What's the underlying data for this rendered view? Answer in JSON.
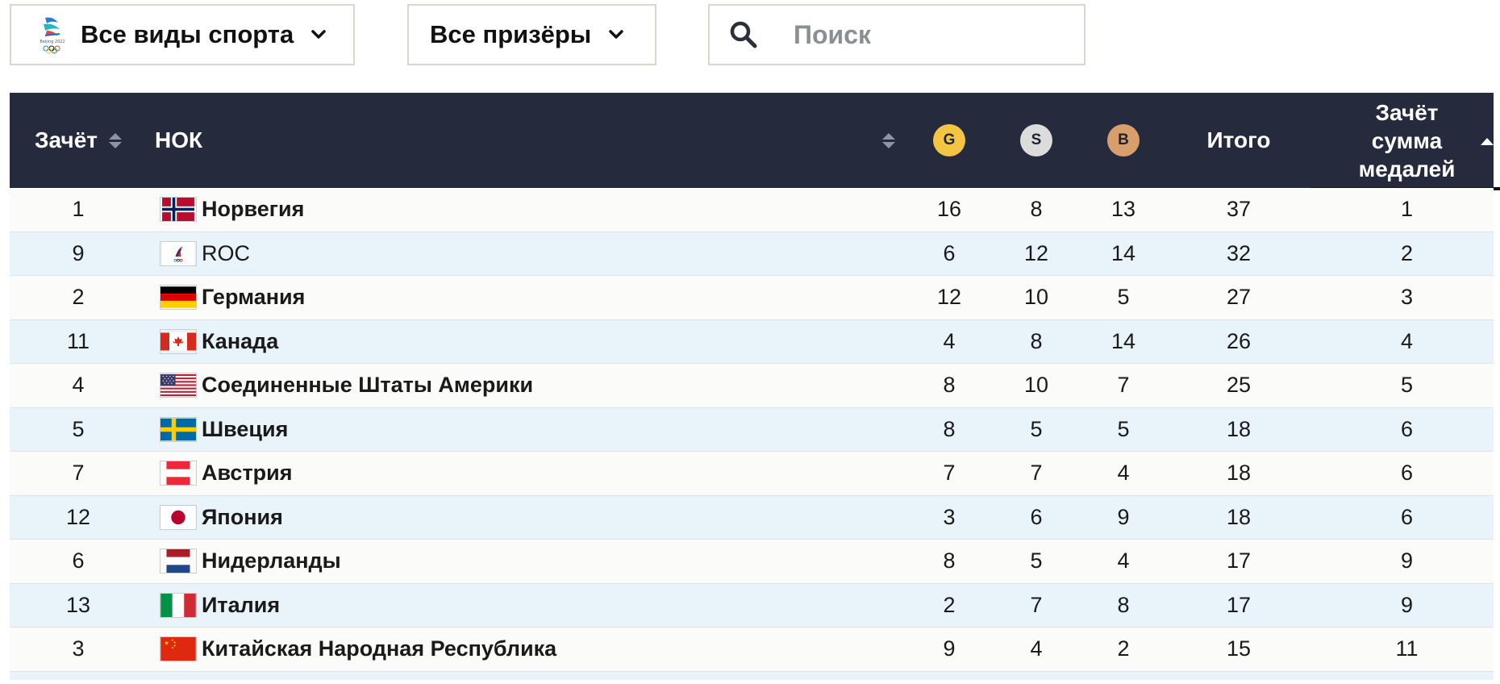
{
  "filters": {
    "sport_label": "Все виды спорта",
    "sport_logo_icon": "beijing-2022-logo-icon",
    "medalists_label": "Все призёры",
    "search_placeholder": "Поиск"
  },
  "table": {
    "headers": {
      "rank": "Зачёт",
      "noc": "НОК",
      "gold": "G",
      "silver": "S",
      "bronze": "B",
      "total": "Итого",
      "medal_rank": "Зачёт сумма медалей"
    },
    "sorted_by": "medal_rank",
    "sort_direction": "ascending",
    "rows": [
      {
        "rank": "1",
        "noc": "Норвегия",
        "flag": "norway",
        "gold": "16",
        "silver": "8",
        "bronze": "13",
        "total": "37",
        "medal_rank": "1"
      },
      {
        "rank": "9",
        "noc": "ROC",
        "flag": "roc",
        "gold": "6",
        "silver": "12",
        "bronze": "14",
        "total": "32",
        "medal_rank": "2"
      },
      {
        "rank": "2",
        "noc": "Германия",
        "flag": "germany",
        "gold": "12",
        "silver": "10",
        "bronze": "5",
        "total": "27",
        "medal_rank": "3"
      },
      {
        "rank": "11",
        "noc": "Канада",
        "flag": "canada",
        "gold": "4",
        "silver": "8",
        "bronze": "14",
        "total": "26",
        "medal_rank": "4"
      },
      {
        "rank": "4",
        "noc": "Соединенные Штаты Америки",
        "flag": "usa",
        "gold": "8",
        "silver": "10",
        "bronze": "7",
        "total": "25",
        "medal_rank": "5"
      },
      {
        "rank": "5",
        "noc": "Швеция",
        "flag": "sweden",
        "gold": "8",
        "silver": "5",
        "bronze": "5",
        "total": "18",
        "medal_rank": "6"
      },
      {
        "rank": "7",
        "noc": "Австрия",
        "flag": "austria",
        "gold": "7",
        "silver": "7",
        "bronze": "4",
        "total": "18",
        "medal_rank": "6"
      },
      {
        "rank": "12",
        "noc": "Япония",
        "flag": "japan",
        "gold": "3",
        "silver": "6",
        "bronze": "9",
        "total": "18",
        "medal_rank": "6"
      },
      {
        "rank": "6",
        "noc": "Нидерланды",
        "flag": "netherlands",
        "gold": "8",
        "silver": "5",
        "bronze": "4",
        "total": "17",
        "medal_rank": "9"
      },
      {
        "rank": "13",
        "noc": "Италия",
        "flag": "italy",
        "gold": "2",
        "silver": "7",
        "bronze": "8",
        "total": "17",
        "medal_rank": "9"
      },
      {
        "rank": "3",
        "noc": "Китайская Народная Республика",
        "flag": "china",
        "gold": "9",
        "silver": "4",
        "bronze": "2",
        "total": "15",
        "medal_rank": "11"
      }
    ]
  },
  "colors": {
    "header_bg": "#252b3c",
    "row_odd": "#fbfbf9",
    "row_even": "#e9f3fa",
    "gold": "#f4c542",
    "silver": "#dcdcdc",
    "bronze": "#d89e6b"
  }
}
